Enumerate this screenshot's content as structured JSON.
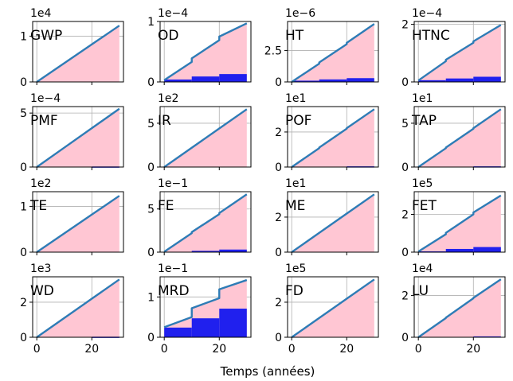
{
  "figure": {
    "xlabel": "Temps (années)"
  },
  "colors": {
    "line": "#2e7cb6",
    "area": "#ffc6d3",
    "bar": "#2020ee",
    "grid": "#b0b0b0"
  },
  "chart_data": [
    {
      "type": "area",
      "label": "GWP",
      "exponent": "1e4",
      "yticks": [
        0,
        1
      ],
      "ylim": [
        0,
        1.32
      ],
      "xlim": [
        -1.5,
        31.5
      ],
      "xticks": [
        0,
        20
      ],
      "line": {
        "x": [
          0,
          10,
          20,
          30
        ],
        "y": [
          0,
          0.41,
          0.82,
          1.23
        ]
      },
      "bars": []
    },
    {
      "type": "area",
      "label": "OD",
      "exponent": "1e−4",
      "yticks": [
        0,
        1
      ],
      "ylim": [
        0,
        1.0
      ],
      "xlim": [
        -1.5,
        31.5
      ],
      "xticks": [
        0,
        20
      ],
      "line": {
        "x": [
          0,
          10,
          10,
          20,
          20,
          30
        ],
        "y": [
          0.03,
          0.33,
          0.39,
          0.69,
          0.75,
          0.97
        ]
      },
      "bars": [
        {
          "x0": 0,
          "x1": 10,
          "h": 0.04
        },
        {
          "x0": 10,
          "x1": 20,
          "h": 0.09
        },
        {
          "x0": 20,
          "x1": 30,
          "h": 0.13
        }
      ]
    },
    {
      "type": "area",
      "label": "HT",
      "exponent": "1e−6",
      "yticks": [
        0,
        2.5
      ],
      "ylim": [
        0,
        4.8
      ],
      "xlim": [
        -1.5,
        31.5
      ],
      "xticks": [
        0,
        20
      ],
      "line": {
        "x": [
          0,
          10,
          10,
          20,
          20,
          30
        ],
        "y": [
          0,
          1.45,
          1.55,
          3.0,
          3.1,
          4.6
        ]
      },
      "bars": [
        {
          "x0": 0,
          "x1": 10,
          "h": 0.1
        },
        {
          "x0": 10,
          "x1": 20,
          "h": 0.2
        },
        {
          "x0": 20,
          "x1": 30,
          "h": 0.3
        }
      ]
    },
    {
      "type": "area",
      "label": "HTNC",
      "exponent": "1e−4",
      "yticks": [
        0,
        2
      ],
      "ylim": [
        0,
        2.1
      ],
      "xlim": [
        -1.5,
        31.5
      ],
      "xticks": [
        0,
        20
      ],
      "line": {
        "x": [
          0,
          10,
          10,
          20,
          20,
          30
        ],
        "y": [
          0.05,
          0.72,
          0.77,
          1.36,
          1.41,
          1.98
        ]
      },
      "bars": [
        {
          "x0": 0,
          "x1": 10,
          "h": 0.06
        },
        {
          "x0": 10,
          "x1": 20,
          "h": 0.12
        },
        {
          "x0": 20,
          "x1": 30,
          "h": 0.18
        }
      ]
    },
    {
      "type": "area",
      "label": "PMF",
      "exponent": "1e−4",
      "yticks": [
        0,
        5
      ],
      "ylim": [
        0,
        5.6
      ],
      "xlim": [
        -1.5,
        31.5
      ],
      "xticks": [
        0,
        20
      ],
      "line": {
        "x": [
          0,
          10,
          20,
          30
        ],
        "y": [
          0,
          1.8,
          3.6,
          5.4
        ]
      },
      "bars": [
        {
          "x0": 20,
          "x1": 30,
          "h": 0.05
        }
      ]
    },
    {
      "type": "area",
      "label": "IR",
      "exponent": "1e2",
      "yticks": [
        0,
        5
      ],
      "ylim": [
        0,
        6.9
      ],
      "xlim": [
        -1.5,
        31.5
      ],
      "xticks": [
        0,
        20
      ],
      "line": {
        "x": [
          0,
          10,
          20,
          30
        ],
        "y": [
          0,
          2.2,
          4.4,
          6.6
        ]
      },
      "bars": []
    },
    {
      "type": "area",
      "label": "POF",
      "exponent": "1e1",
      "yticks": [
        0,
        2
      ],
      "ylim": [
        0,
        3.45
      ],
      "xlim": [
        -1.5,
        31.5
      ],
      "xticks": [
        0,
        20
      ],
      "line": {
        "x": [
          0,
          10,
          10,
          20,
          20,
          30
        ],
        "y": [
          0,
          1.08,
          1.11,
          2.19,
          2.22,
          3.3
        ]
      },
      "bars": [
        {
          "x0": 20,
          "x1": 30,
          "h": 0.04
        }
      ]
    },
    {
      "type": "area",
      "label": "TAP",
      "exponent": "1e1",
      "yticks": [
        0,
        5
      ],
      "ylim": [
        0,
        6.9
      ],
      "xlim": [
        -1.5,
        31.5
      ],
      "xticks": [
        0,
        20
      ],
      "line": {
        "x": [
          0,
          10,
          10,
          20,
          20,
          30
        ],
        "y": [
          0,
          2.15,
          2.22,
          4.37,
          4.44,
          6.6
        ]
      },
      "bars": [
        {
          "x0": 20,
          "x1": 30,
          "h": 0.08
        }
      ]
    },
    {
      "type": "area",
      "label": "TE",
      "exponent": "1e2",
      "yticks": [
        0,
        1
      ],
      "ylim": [
        0,
        1.32
      ],
      "xlim": [
        -1.5,
        31.5
      ],
      "xticks": [
        0,
        20
      ],
      "line": {
        "x": [
          0,
          10,
          20,
          30
        ],
        "y": [
          0,
          0.41,
          0.82,
          1.23
        ]
      },
      "bars": []
    },
    {
      "type": "area",
      "label": "FE",
      "exponent": "1e−1",
      "yticks": [
        0,
        5
      ],
      "ylim": [
        0,
        7.0
      ],
      "xlim": [
        -1.5,
        31.5
      ],
      "xticks": [
        0,
        20
      ],
      "line": {
        "x": [
          0,
          10,
          10,
          20,
          20,
          30
        ],
        "y": [
          0.05,
          2.2,
          2.32,
          4.4,
          4.52,
          6.7
        ]
      },
      "bars": [
        {
          "x0": 10,
          "x1": 20,
          "h": 0.15
        },
        {
          "x0": 20,
          "x1": 30,
          "h": 0.3
        }
      ]
    },
    {
      "type": "area",
      "label": "ME",
      "exponent": "1e1",
      "yticks": [
        0,
        2
      ],
      "ylim": [
        0,
        3.45
      ],
      "xlim": [
        -1.5,
        31.5
      ],
      "xticks": [
        0,
        20
      ],
      "line": {
        "x": [
          0,
          10,
          20,
          30
        ],
        "y": [
          0,
          1.1,
          2.2,
          3.3
        ]
      },
      "bars": []
    },
    {
      "type": "area",
      "label": "FET",
      "exponent": "1e5",
      "yticks": [
        0,
        2
      ],
      "ylim": [
        0,
        3.2
      ],
      "xlim": [
        -1.5,
        31.5
      ],
      "xticks": [
        0,
        20
      ],
      "line": {
        "x": [
          0,
          10,
          10,
          20,
          20,
          30
        ],
        "y": [
          0.03,
          0.95,
          1.02,
          2.0,
          2.1,
          3.0
        ]
      },
      "bars": [
        {
          "x0": 0,
          "x1": 10,
          "h": 0.04
        },
        {
          "x0": 10,
          "x1": 20,
          "h": 0.17
        },
        {
          "x0": 20,
          "x1": 30,
          "h": 0.27
        }
      ]
    },
    {
      "type": "area",
      "label": "WD",
      "exponent": "1e3",
      "yticks": [
        0,
        2
      ],
      "ylim": [
        0,
        3.45
      ],
      "xlim": [
        -1.5,
        31.5
      ],
      "xticks": [
        0,
        20
      ],
      "line": {
        "x": [
          0,
          10,
          20,
          30
        ],
        "y": [
          0,
          1.1,
          2.2,
          3.3
        ]
      },
      "bars": [
        {
          "x0": 20,
          "x1": 30,
          "h": 0.03
        }
      ]
    },
    {
      "type": "area",
      "label": "MRD",
      "exponent": "1e−1",
      "yticks": [
        0,
        1
      ],
      "ylim": [
        0,
        1.5
      ],
      "xlim": [
        -1.5,
        31.5
      ],
      "xticks": [
        0,
        20
      ],
      "line": {
        "x": [
          0,
          10,
          10,
          20,
          20,
          30
        ],
        "y": [
          0.25,
          0.5,
          0.72,
          0.97,
          1.19,
          1.42
        ]
      },
      "bars": [
        {
          "x0": 0,
          "x1": 10,
          "h": 0.24
        },
        {
          "x0": 10,
          "x1": 20,
          "h": 0.47
        },
        {
          "x0": 20,
          "x1": 30,
          "h": 0.71
        }
      ]
    },
    {
      "type": "area",
      "label": "FD",
      "exponent": "1e5",
      "yticks": [
        0,
        2
      ],
      "ylim": [
        0,
        3.45
      ],
      "xlim": [
        -1.5,
        31.5
      ],
      "xticks": [
        0,
        20
      ],
      "line": {
        "x": [
          0,
          10,
          20,
          30
        ],
        "y": [
          0,
          1.1,
          2.2,
          3.3
        ]
      },
      "bars": []
    },
    {
      "type": "area",
      "label": "LU",
      "exponent": "1e4",
      "yticks": [
        0,
        2
      ],
      "ylim": [
        0,
        2.9
      ],
      "xlim": [
        -1.5,
        31.5
      ],
      "xticks": [
        0,
        20
      ],
      "line": {
        "x": [
          0,
          10,
          10,
          20,
          20,
          30
        ],
        "y": [
          0,
          0.92,
          0.94,
          1.87,
          1.89,
          2.78
        ]
      },
      "bars": [
        {
          "x0": 20,
          "x1": 30,
          "h": 0.04
        }
      ]
    }
  ]
}
